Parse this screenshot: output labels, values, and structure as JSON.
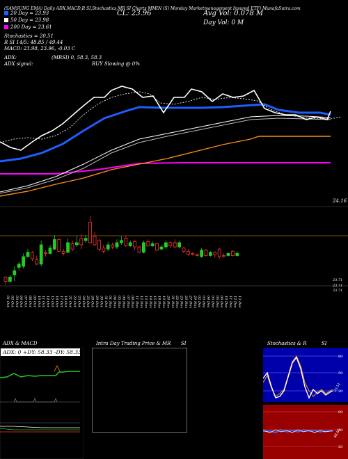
{
  "header": {
    "top_line": "(SAMSUNG EMA) Daily ADX,MACD,R SI,Stochastics,MR SI Charts MMIN (S) Monday Marketmanagement Insured ETF) MunafaSutra.com",
    "close_text": "CL: 23.96",
    "avg_vol_text": "Avg Vol: 0.078 M",
    "day_vol_text": "Day Vol: 0 M"
  },
  "legend": [
    {
      "label": "20 Day = 23.93",
      "color": "#1e5eff"
    },
    {
      "label": "50 Day = 23.98",
      "color": "#ffffff"
    },
    {
      "label": "200 Day = 23.61",
      "color": "#ff00ff"
    }
  ],
  "indicators": {
    "stoch": "Stochastics = 20.51",
    "rsi": "R SI 14/5: 48.85 / 49.44",
    "macd": "MACD: 23.98, 23.96, -0.03 C",
    "adx1": "ADX:",
    "adx2": "ADX  signal:",
    "mrsi": "(MRSI) 0, 58.3, 58.3",
    "signal": "BUY Slowing @ 0%"
  },
  "right_label": "24.16",
  "price_labels": [
    "23.71",
    "23.71",
    "23.71"
  ],
  "dates": [
    "01 Oct",
    "02 Oct",
    "03 Oct",
    "04 Oct",
    "07 Oct",
    "08 Oct",
    "09 Oct",
    "10 Oct",
    "11 Oct",
    "14 Oct",
    "15 Oct",
    "16 Oct",
    "17 Oct",
    "18 Oct",
    "21 Oct",
    "22 Oct",
    "23 Oct",
    "24 Oct",
    "25 Oct",
    "28 Oct",
    "29 Oct",
    "30 Oct",
    "31 Oct",
    "01 Nov",
    "04 Nov",
    "05 Nov",
    "06 Nov",
    "07 Nov",
    "08 Nov",
    "11 Nov",
    "12 Nov",
    "13 Nov",
    "14 Nov",
    "15 Nov",
    "18 Nov",
    "19 Nov",
    "20 Nov",
    "21 Nov",
    "22 Nov",
    "25 Nov",
    "26 Nov",
    "27 Nov",
    "29 Nov",
    "02 Dec",
    "03 Dec",
    "04 Dec",
    "05 Dec",
    "06 Dec",
    "09 Dec",
    "10 Dec",
    "11 Dec",
    "12 Dec",
    "13 Dec"
  ],
  "panels": {
    "adx_title": "ADX  & MACD",
    "adx_box": "ADX: 0   +DY: 58.33  -DY: 58.33",
    "intra_title": "Intra  Day Trading Price  & MR",
    "intra_si": "SI",
    "stoch_title": "Stochastics & R",
    "stoch_si": "SI",
    "stoch_ticks": [
      "80",
      "50",
      "20"
    ],
    "rsi_ticks": [
      "80",
      "50",
      "20"
    ],
    "stoch_value": "20.51",
    "rsi_value": "48.85"
  },
  "chart_data": {
    "type": "candlestick",
    "ylim": [
      23.6,
      24.7
    ],
    "candles": [
      {
        "o": 23.74,
        "c": 23.7,
        "h": 23.75,
        "l": 23.67,
        "color": "red"
      },
      {
        "o": 23.7,
        "c": 23.74,
        "h": 23.76,
        "l": 23.69,
        "color": "green"
      },
      {
        "o": 23.76,
        "c": 23.8,
        "h": 23.84,
        "l": 23.7,
        "color": "green"
      },
      {
        "o": 23.83,
        "c": 23.86,
        "h": 23.88,
        "l": 23.8,
        "color": "green"
      },
      {
        "o": 23.84,
        "c": 23.93,
        "h": 23.96,
        "l": 23.82,
        "color": "green"
      },
      {
        "o": 23.93,
        "c": 23.97,
        "h": 24.0,
        "l": 23.92,
        "color": "green"
      },
      {
        "o": 23.97,
        "c": 23.91,
        "h": 23.98,
        "l": 23.89,
        "color": "red"
      },
      {
        "o": 23.9,
        "c": 23.86,
        "h": 23.94,
        "l": 23.85,
        "color": "red"
      },
      {
        "o": 23.86,
        "c": 24.04,
        "h": 24.08,
        "l": 23.84,
        "color": "green"
      },
      {
        "o": 23.97,
        "c": 23.96,
        "h": 23.99,
        "l": 23.93,
        "color": "red"
      },
      {
        "o": 23.96,
        "c": 24.01,
        "h": 24.04,
        "l": 23.95,
        "color": "green"
      },
      {
        "o": 24.0,
        "c": 24.09,
        "h": 24.13,
        "l": 23.99,
        "color": "green"
      },
      {
        "o": 24.09,
        "c": 23.98,
        "h": 24.1,
        "l": 23.97,
        "color": "red"
      },
      {
        "o": 23.98,
        "c": 23.96,
        "h": 24.0,
        "l": 23.94,
        "color": "red"
      },
      {
        "o": 23.97,
        "c": 24.06,
        "h": 24.1,
        "l": 23.96,
        "color": "green"
      },
      {
        "o": 24.05,
        "c": 24.0,
        "h": 24.08,
        "l": 23.98,
        "color": "red"
      },
      {
        "o": 24.04,
        "c": 24.06,
        "h": 24.12,
        "l": 24.02,
        "color": "green"
      },
      {
        "o": 24.1,
        "c": 24.04,
        "h": 24.14,
        "l": 24.0,
        "color": "red"
      },
      {
        "o": 24.08,
        "c": 24.1,
        "h": 24.13,
        "l": 24.06,
        "color": "green"
      },
      {
        "o": 24.25,
        "c": 24.06,
        "h": 24.31,
        "l": 24.05,
        "color": "red"
      },
      {
        "o": 24.12,
        "c": 24.04,
        "h": 24.16,
        "l": 24.03,
        "color": "red"
      },
      {
        "o": 24.08,
        "c": 24.0,
        "h": 24.1,
        "l": 23.98,
        "color": "red"
      },
      {
        "o": 24.01,
        "c": 23.98,
        "h": 24.04,
        "l": 23.96,
        "color": "red"
      },
      {
        "o": 24.0,
        "c": 24.04,
        "h": 24.07,
        "l": 23.98,
        "color": "green"
      },
      {
        "o": 24.04,
        "c": 24.02,
        "h": 24.06,
        "l": 24.0,
        "color": "red"
      },
      {
        "o": 24.02,
        "c": 24.06,
        "h": 24.09,
        "l": 24.0,
        "color": "green"
      },
      {
        "o": 24.06,
        "c": 24.08,
        "h": 24.12,
        "l": 24.04,
        "color": "green"
      },
      {
        "o": 24.1,
        "c": 24.03,
        "h": 24.12,
        "l": 24.02,
        "color": "red"
      },
      {
        "o": 24.03,
        "c": 24.06,
        "h": 24.08,
        "l": 24.02,
        "color": "green"
      },
      {
        "o": 24.07,
        "c": 24.02,
        "h": 24.08,
        "l": 23.99,
        "color": "red"
      },
      {
        "o": 24.02,
        "c": 23.97,
        "h": 24.03,
        "l": 23.96,
        "color": "red"
      },
      {
        "o": 23.97,
        "c": 24.06,
        "h": 24.08,
        "l": 23.96,
        "color": "green"
      },
      {
        "o": 24.07,
        "c": 24.03,
        "h": 24.09,
        "l": 24.02,
        "color": "red"
      },
      {
        "o": 24.03,
        "c": 24.05,
        "h": 24.07,
        "l": 24.02,
        "color": "green"
      },
      {
        "o": 24.05,
        "c": 23.99,
        "h": 24.06,
        "l": 23.98,
        "color": "red"
      },
      {
        "o": 24.0,
        "c": 24.02,
        "h": 24.04,
        "l": 23.99,
        "color": "green"
      },
      {
        "o": 24.02,
        "c": 24.06,
        "h": 24.08,
        "l": 24.0,
        "color": "green"
      },
      {
        "o": 24.06,
        "c": 24.03,
        "h": 24.07,
        "l": 24.01,
        "color": "red"
      },
      {
        "o": 24.06,
        "c": 24.02,
        "h": 24.09,
        "l": 24.01,
        "color": "red"
      },
      {
        "o": 24.02,
        "c": 24.06,
        "h": 24.08,
        "l": 24.01,
        "color": "green"
      },
      {
        "o": 24.01,
        "c": 23.98,
        "h": 24.02,
        "l": 23.96,
        "color": "red"
      },
      {
        "o": 23.98,
        "c": 23.95,
        "h": 24.0,
        "l": 23.94,
        "color": "red"
      },
      {
        "o": 23.96,
        "c": 23.95,
        "h": 23.97,
        "l": 23.94,
        "color": "red"
      },
      {
        "o": 23.94,
        "c": 23.95,
        "h": 23.96,
        "l": 23.93,
        "color": "red"
      },
      {
        "o": 23.93,
        "c": 23.99,
        "h": 24.01,
        "l": 23.92,
        "color": "green"
      },
      {
        "o": 23.99,
        "c": 23.94,
        "h": 24.0,
        "l": 23.93,
        "color": "red"
      },
      {
        "o": 23.94,
        "c": 23.97,
        "h": 23.98,
        "l": 23.93,
        "color": "green"
      },
      {
        "o": 23.97,
        "c": 23.95,
        "h": 23.98,
        "l": 23.92,
        "color": "red"
      },
      {
        "o": 24.0,
        "c": 23.93,
        "h": 24.01,
        "l": 23.91,
        "color": "red"
      },
      {
        "o": 23.93,
        "c": 23.94,
        "h": 23.96,
        "l": 23.92,
        "color": "red"
      },
      {
        "o": 23.94,
        "c": 23.96,
        "h": 23.97,
        "l": 23.93,
        "color": "green"
      },
      {
        "o": 23.98,
        "c": 23.94,
        "h": 23.99,
        "l": 23.93,
        "color": "red"
      },
      {
        "o": 23.94,
        "c": 23.96,
        "h": 23.98,
        "l": 23.93,
        "color": "green"
      }
    ]
  }
}
